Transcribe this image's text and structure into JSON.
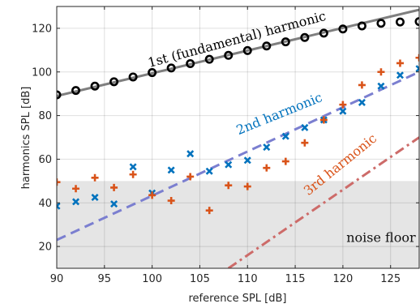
{
  "chart_data": {
    "type": "scatter",
    "xlabel": "reference SPL [dB]",
    "ylabel": "harmonics SPL [dB]",
    "xlim": [
      90,
      128
    ],
    "ylim": [
      10,
      130
    ],
    "xticks": [
      90,
      95,
      100,
      105,
      110,
      115,
      120,
      125
    ],
    "yticks": [
      20,
      40,
      60,
      80,
      100,
      120
    ],
    "grid": true,
    "colors": {
      "fundamental_fit": "#7f7f7f",
      "fundamental_marker": "#000000",
      "second": "#0072bd",
      "second_fit": "#7b7fd0",
      "third": "#d95319",
      "third_fit": "#cd6b69",
      "noise_floor": "#e5e5e5"
    },
    "noise_floor": {
      "y": 50,
      "label": "noise floor"
    },
    "annotations": [
      {
        "text": "1st (fundamental) harmonic",
        "x": 109,
        "y": 113,
        "angle": -15,
        "color": "#000000"
      },
      {
        "text": "2nd harmonic",
        "x": 113.5,
        "y": 79,
        "angle": -22,
        "color": "#0072bd"
      },
      {
        "text": "3rd harmonic",
        "x": 120,
        "y": 56,
        "angle": -39,
        "color": "#d95319"
      }
    ],
    "series": [
      {
        "kind": "markers",
        "marker": "circle",
        "color": "#000000",
        "x": [
          90,
          92,
          94,
          96,
          98,
          100,
          102,
          104,
          106,
          108,
          110,
          112,
          114,
          116,
          118,
          120,
          122,
          124,
          126,
          128
        ],
        "y": [
          89.5,
          91.5,
          93.5,
          95.5,
          97.7,
          99.7,
          101.8,
          103.8,
          105.8,
          107.6,
          109.8,
          111.9,
          113.8,
          115.8,
          117.8,
          119.7,
          121.1,
          122.3,
          122.9,
          123.1
        ]
      },
      {
        "kind": "fit",
        "style": "solid",
        "color": "#7f7f7f",
        "x": [
          90,
          128
        ],
        "y": [
          89.0,
          128.5
        ]
      },
      {
        "kind": "markers",
        "marker": "x",
        "color": "#0072bd",
        "x": [
          90,
          92,
          94,
          96,
          98,
          100,
          102,
          104,
          106,
          108,
          110,
          112,
          114,
          116,
          118,
          120,
          122,
          124,
          126,
          128
        ],
        "y": [
          38.5,
          40.5,
          42.5,
          39.5,
          56.5,
          44.5,
          55,
          62.5,
          54.5,
          57.5,
          59.5,
          65.5,
          70.5,
          74.5,
          78,
          82,
          86,
          93.5,
          98.5,
          101.5
        ]
      },
      {
        "kind": "fit",
        "style": "dashed",
        "color": "#7b7fd0",
        "x": [
          90,
          128
        ],
        "y": [
          23.0,
          100.0
        ]
      },
      {
        "kind": "markers",
        "marker": "plus",
        "color": "#d95319",
        "x": [
          90,
          92,
          94,
          96,
          98,
          100,
          102,
          104,
          106,
          108,
          110,
          112,
          114,
          116,
          118,
          120,
          122,
          124,
          126,
          128
        ],
        "y": [
          49.5,
          46.5,
          51.5,
          47,
          53,
          43.5,
          41,
          52,
          36.5,
          48,
          47.5,
          56,
          59,
          67.5,
          78,
          85,
          94,
          100,
          104,
          106.5
        ]
      },
      {
        "kind": "fit",
        "style": "dashdot",
        "color": "#cd6b69",
        "x": [
          108,
          128
        ],
        "y": [
          10,
          70
        ]
      }
    ]
  }
}
